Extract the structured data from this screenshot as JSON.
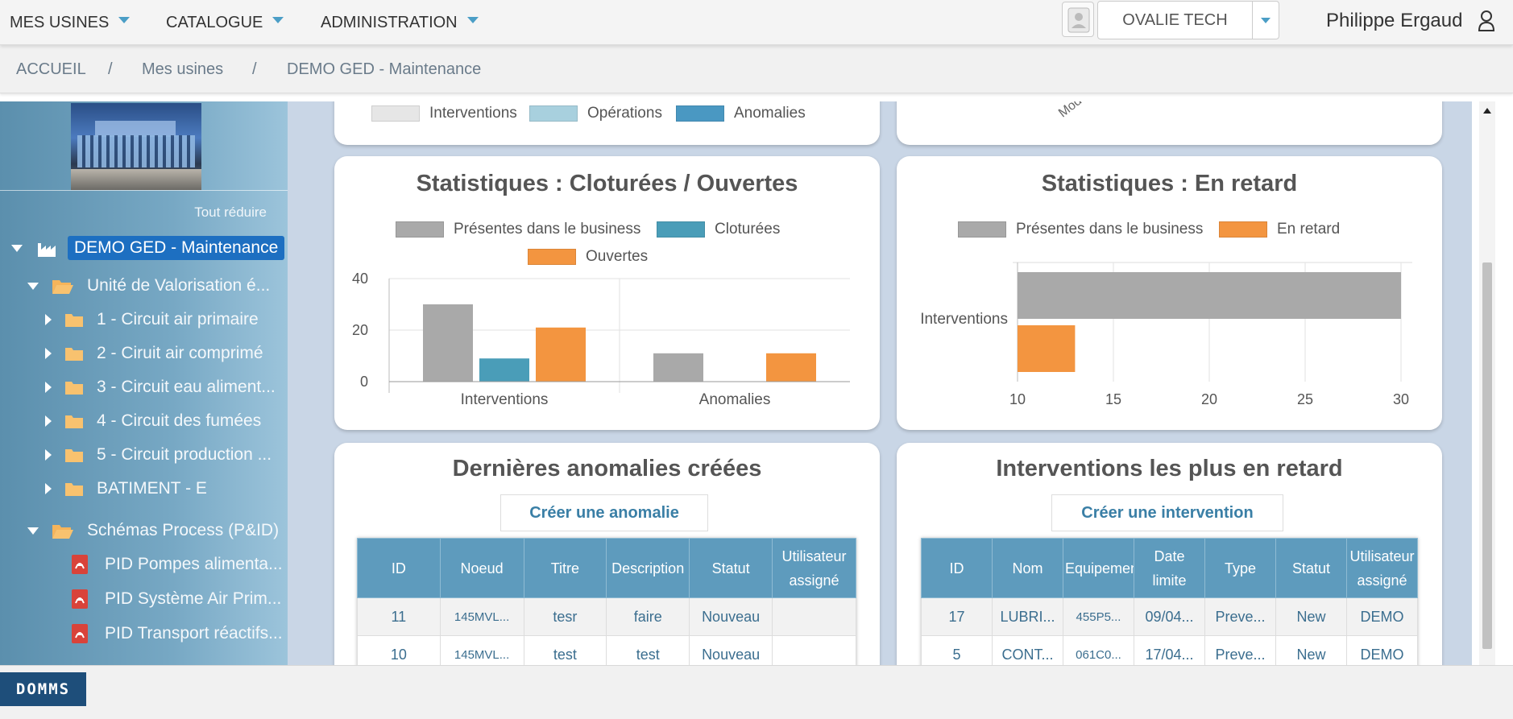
{
  "nav": {
    "menus": [
      "MES USINES",
      "CATALOGUE",
      "ADMINISTRATION"
    ],
    "company": "OVALIE TECH",
    "user": "Philippe Ergaud"
  },
  "breadcrumb": {
    "items": [
      "ACCUEIL",
      "Mes usines",
      "DEMO GED - Maintenance"
    ],
    "separator": "/"
  },
  "sidebar": {
    "collapse_all": "Tout réduire",
    "root": "DEMO GED - Maintenance",
    "group1": "Unité de Valorisation é...",
    "group1_items": [
      "1 - Circuit air primaire",
      "2 - Ciruit air comprimé",
      "3 - Circuit eau aliment...",
      "4 - Circuit des fumées",
      "5 - Circuit production ...",
      "BATIMENT - E"
    ],
    "group2": "Schémas Process (P&ID)",
    "group2_items": [
      "PID Pompes alimenta...",
      "PID Système Air Prim...",
      "PID Transport réactifs..."
    ]
  },
  "top_partial": {
    "legend": [
      "Interventions",
      "Opérations",
      "Anomalies"
    ],
    "legend_colors": [
      "#e6e6e6",
      "#a8d0de",
      "#4a98c2"
    ],
    "rotated_label": "Modèles"
  },
  "chart_data": [
    {
      "type": "bar",
      "title": "Statistiques : Cloturées / Ouvertes",
      "categories": [
        "Interventions",
        "Anomalies"
      ],
      "series": [
        {
          "name": "Présentes dans le business",
          "values": [
            30,
            11
          ],
          "color": "#a9a9a9"
        },
        {
          "name": "Cloturées",
          "values": [
            9,
            0
          ],
          "color": "#4a9db8"
        },
        {
          "name": "Ouvertes",
          "values": [
            21,
            11
          ],
          "color": "#f39540"
        }
      ],
      "yticks": [
        0,
        20,
        40
      ],
      "ylim": [
        0,
        40
      ],
      "legend": "top",
      "grid": true
    },
    {
      "type": "bar",
      "orientation": "horizontal",
      "title": "Statistiques : En retard",
      "categories": [
        "Interventions"
      ],
      "series": [
        {
          "name": "Présentes dans le business",
          "values": [
            30
          ],
          "color": "#a9a9a9"
        },
        {
          "name": "En retard",
          "values": [
            13
          ],
          "color": "#f39540"
        }
      ],
      "xticks": [
        10,
        15,
        20,
        25,
        30
      ],
      "xlim": [
        10,
        30
      ],
      "legend": "top",
      "grid": true
    }
  ],
  "anomalies": {
    "title": "Dernières anomalies créées",
    "button": "Créer une anomalie",
    "columns": [
      "ID",
      "Noeud",
      "Titre",
      "Description",
      "Statut",
      "Utilisateur assigné"
    ],
    "rows": [
      [
        "11",
        "145MVL...",
        "tesr",
        "faire",
        "Nouveau",
        ""
      ],
      [
        "10",
        "145MVL...",
        "test",
        "test",
        "Nouveau",
        ""
      ]
    ]
  },
  "late": {
    "title": "Interventions les plus en retard",
    "button": "Créer une intervention",
    "columns": [
      "ID",
      "Nom",
      "Equipement",
      "Date limite",
      "Type",
      "Statut",
      "Utilisateur assigné"
    ],
    "rows": [
      [
        "17",
        "LUBRI...",
        "455P5...",
        "09/04...",
        "Preve...",
        "New",
        "DEMO"
      ],
      [
        "5",
        "CONT...",
        "061C0...",
        "17/04...",
        "Preve...",
        "New",
        "DEMO"
      ]
    ]
  },
  "footer": {
    "logo": "DOMMS"
  }
}
